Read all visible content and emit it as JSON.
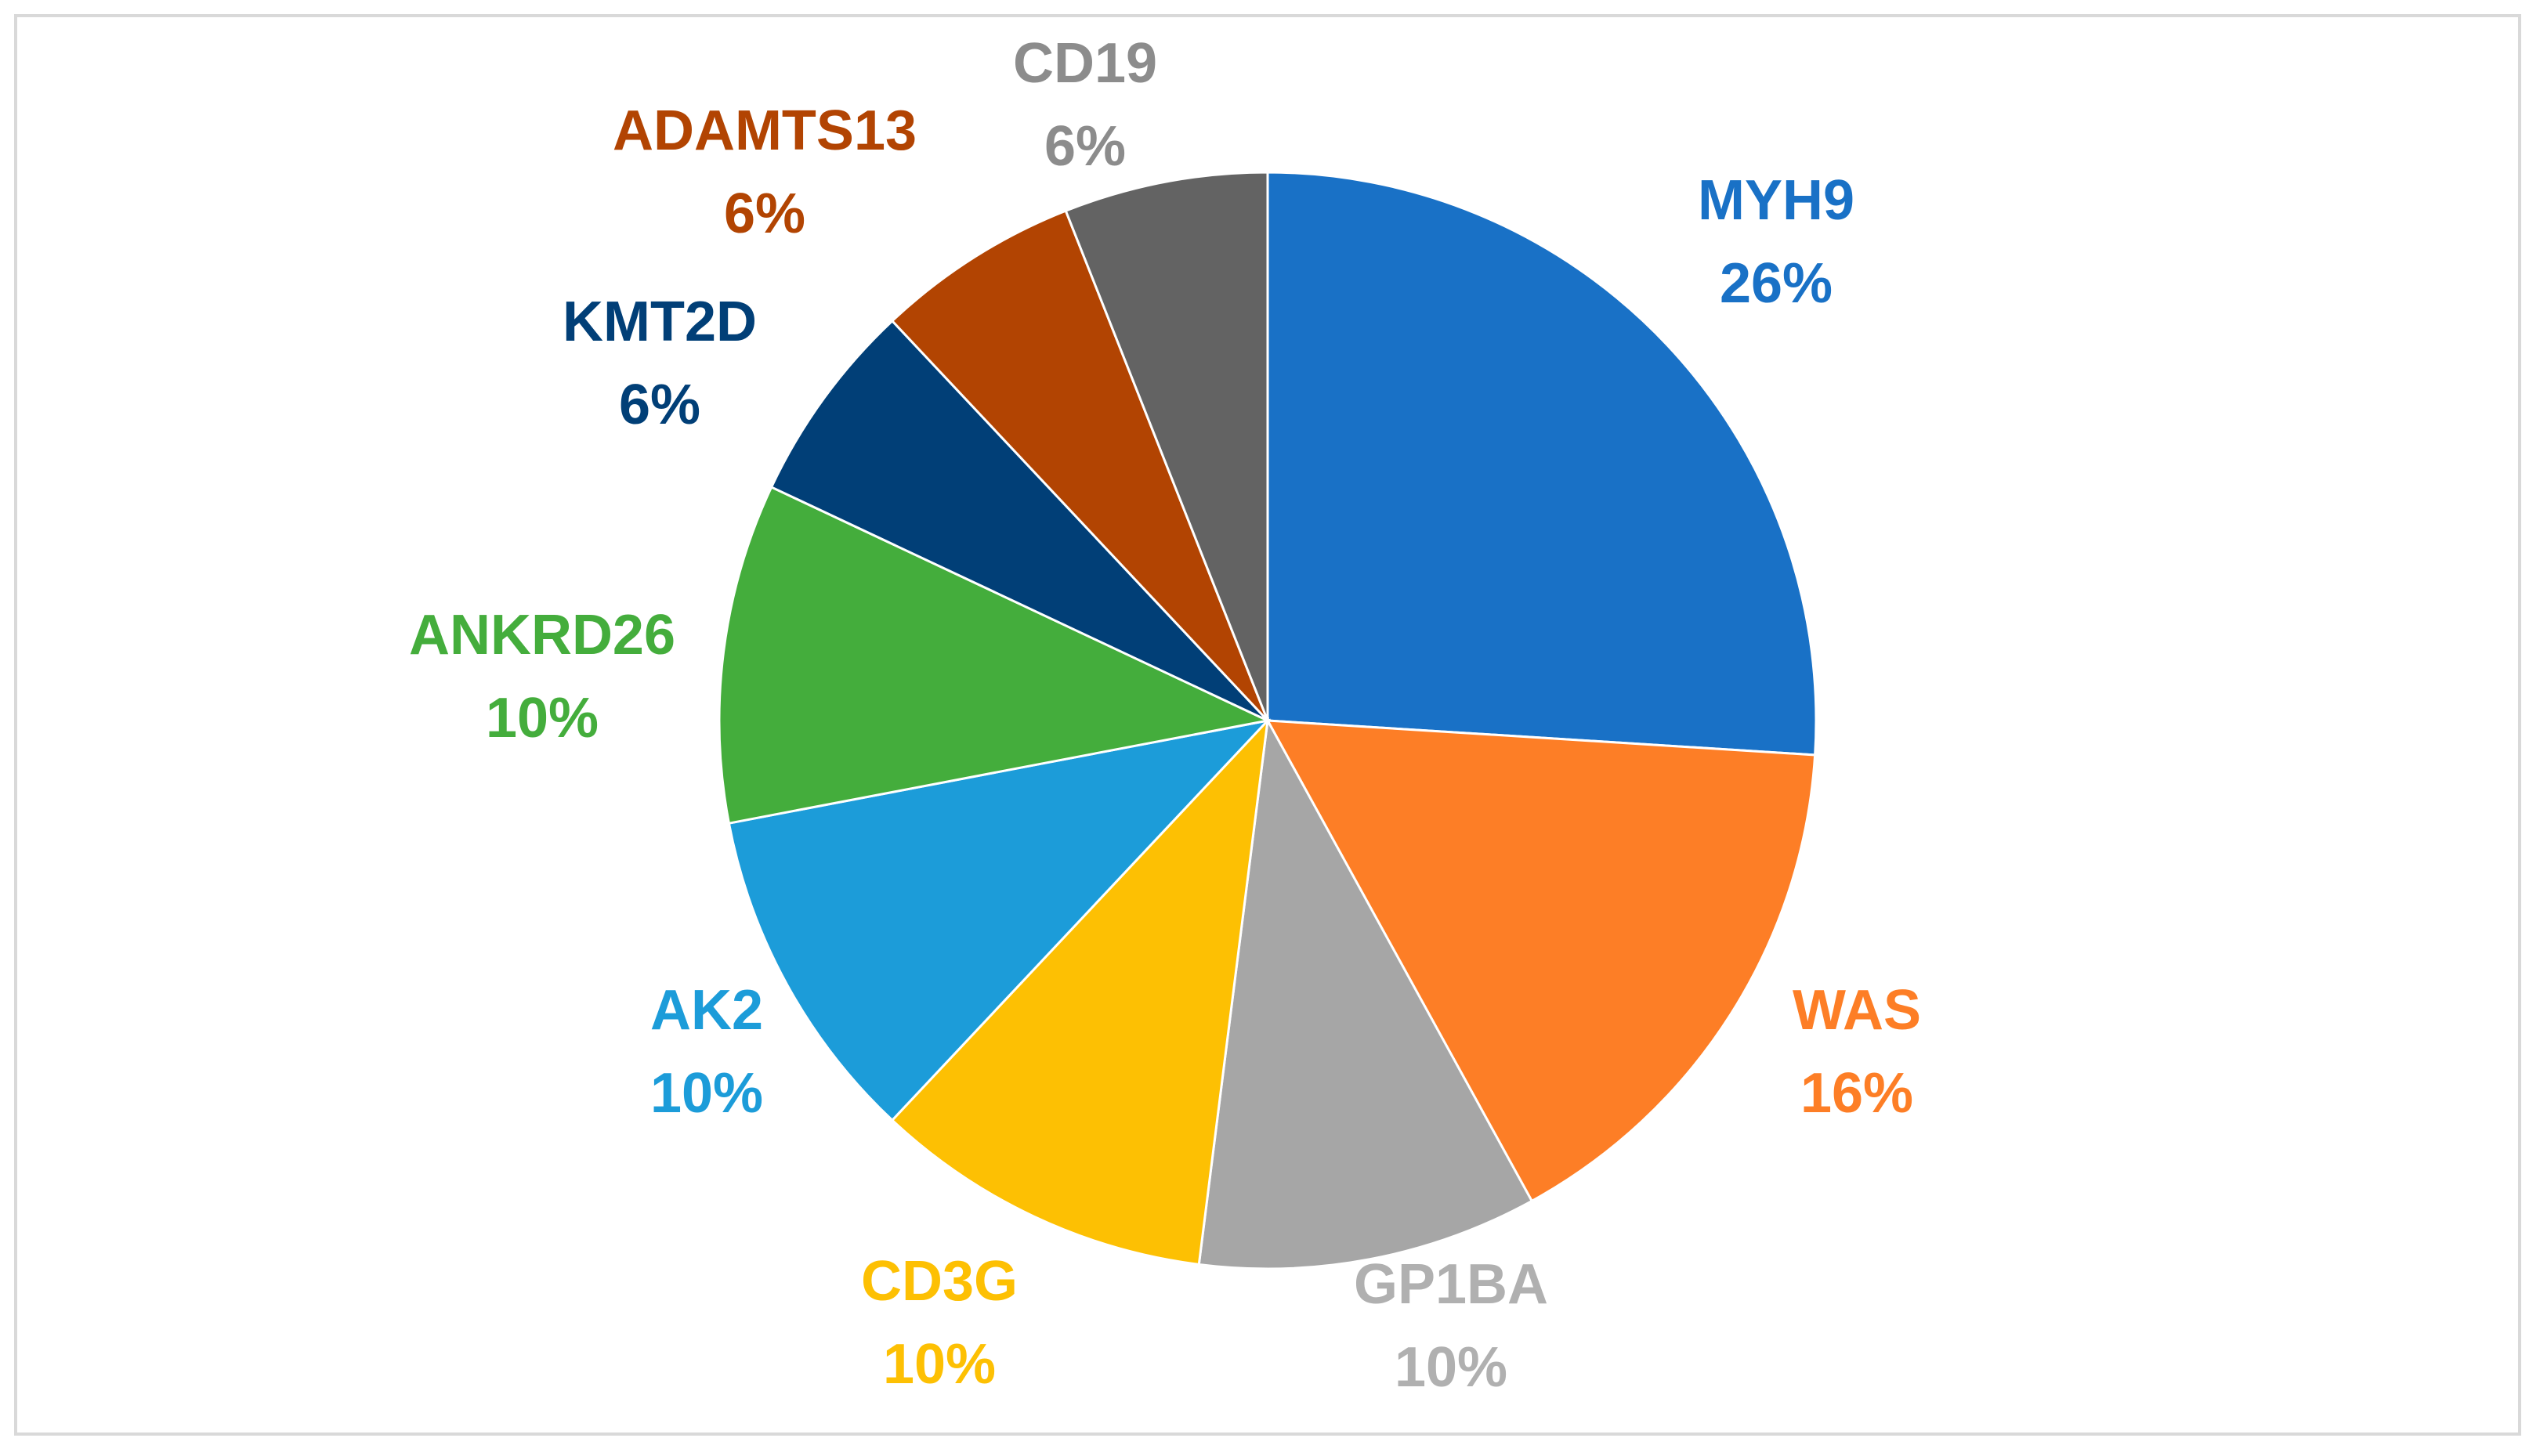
{
  "chart_data": {
    "type": "pie",
    "title": "",
    "start_angle_deg": 0,
    "direction": "clockwise",
    "slices": [
      {
        "label": "MYH9",
        "value": 26,
        "display": "26%",
        "color": "#1971c6",
        "label_color": "#1971c6"
      },
      {
        "label": "WAS",
        "value": 16,
        "display": "16%",
        "color": "#fd7e26",
        "label_color": "#fd7e26"
      },
      {
        "label": "GP1BA",
        "value": 10,
        "display": "10%",
        "color": "#a6a6a6",
        "label_color": "#b0b0b0"
      },
      {
        "label": "CD3G",
        "value": 10,
        "display": "10%",
        "color": "#fdc003",
        "label_color": "#fdc003"
      },
      {
        "label": "AK2",
        "value": 10,
        "display": "10%",
        "color": "#1c9cd9",
        "label_color": "#1c9cd9"
      },
      {
        "label": "ANKRD26",
        "value": 10,
        "display": "10%",
        "color": "#44ad3c",
        "label_color": "#44ad3c"
      },
      {
        "label": "KMT2D",
        "value": 6,
        "display": "6%",
        "color": "#013f77",
        "label_color": "#013f77"
      },
      {
        "label": "ADAMTS13",
        "value": 6,
        "display": "6%",
        "color": "#b24402",
        "label_color": "#b24402"
      },
      {
        "label": "CD19",
        "value": 6,
        "display": "6%",
        "color": "#636363",
        "label_color": "#8c8c8c"
      }
    ]
  }
}
